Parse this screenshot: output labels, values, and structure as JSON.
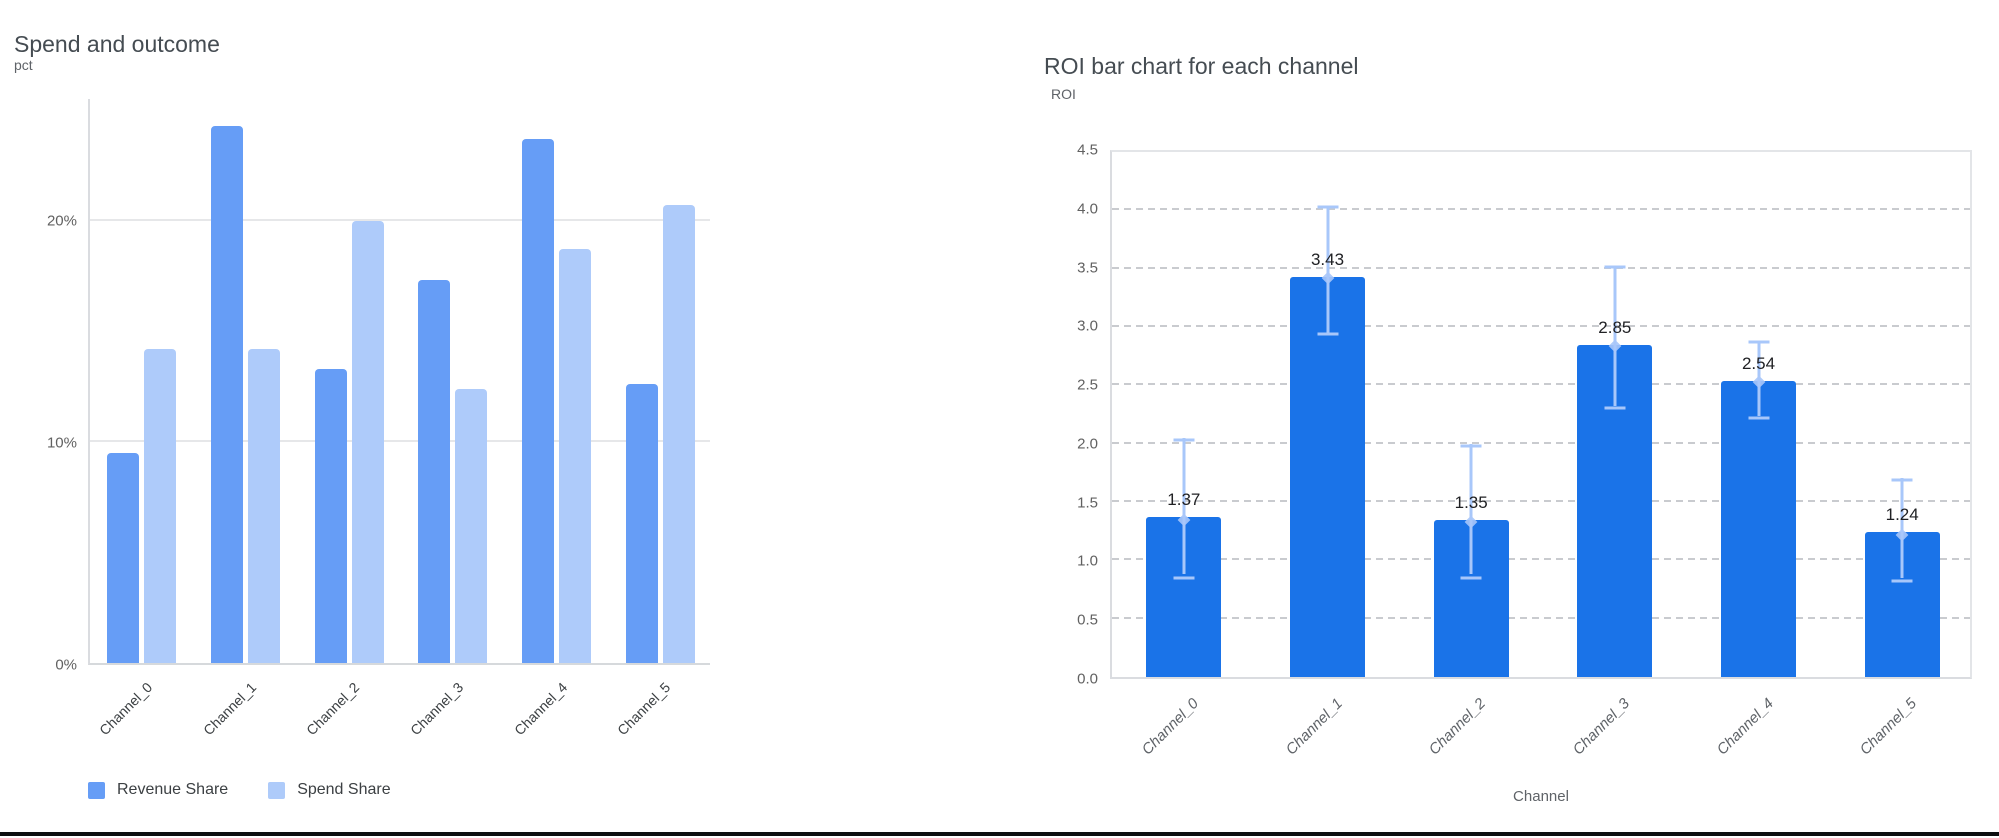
{
  "left_chart": {
    "title": "Spend and outcome",
    "unit_label": "pct",
    "legend": [
      {
        "label": "Revenue Share",
        "color": "#669df6"
      },
      {
        "label": "Spend Share",
        "color": "#aecbfa"
      }
    ]
  },
  "right_chart": {
    "title": "ROI bar chart for each channel",
    "unit_label": "ROI",
    "x_axis_title": "Channel"
  },
  "chart_data": [
    {
      "type": "bar",
      "title": "Spend and outcome",
      "ylabel": "pct",
      "xlabel": "",
      "categories": [
        "Channel_0",
        "Channel_1",
        "Channel_2",
        "Channel_3",
        "Channel_4",
        "Channel_5"
      ],
      "series": [
        {
          "name": "Revenue Share",
          "color": "#669df6",
          "values": [
            9.5,
            24.3,
            13.3,
            17.3,
            23.7,
            12.6
          ]
        },
        {
          "name": "Spend Share",
          "color": "#aecbfa",
          "values": [
            14.2,
            14.2,
            20.0,
            12.4,
            18.7,
            20.7
          ]
        }
      ],
      "ylim": [
        0,
        25.5
      ],
      "yticks": [
        {
          "value": 0,
          "label": "0%"
        },
        {
          "value": 10,
          "label": "10%"
        },
        {
          "value": 20,
          "label": "20%"
        }
      ],
      "grid": "solid",
      "legend_position": "bottom-left"
    },
    {
      "type": "bar",
      "title": "ROI bar chart for each channel",
      "ylabel": "ROI",
      "xlabel": "Channel",
      "categories": [
        "Channel_0",
        "Channel_1",
        "Channel_2",
        "Channel_3",
        "Channel_4",
        "Channel_5"
      ],
      "values": [
        1.37,
        3.43,
        1.35,
        2.85,
        2.54,
        1.24
      ],
      "value_labels": [
        "1.37",
        "3.43",
        "1.35",
        "2.85",
        "2.54",
        "1.24"
      ],
      "error_low": [
        0.88,
        2.95,
        0.88,
        2.32,
        2.24,
        0.85
      ],
      "error_high": [
        2.05,
        4.03,
        2.0,
        3.52,
        2.88,
        1.71
      ],
      "bar_color": "#1a73e8",
      "error_bar_color": "#a8c7fa",
      "ylim": [
        0,
        4.5
      ],
      "ytick_step": 0.5,
      "grid": "dashed",
      "legend_position": "none"
    }
  ]
}
